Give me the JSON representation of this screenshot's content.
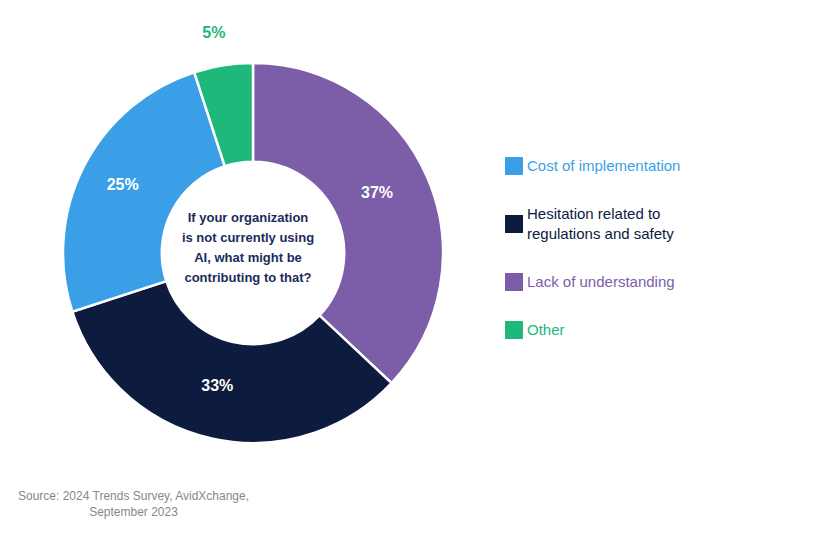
{
  "chart_data": {
    "type": "pie",
    "categories": [
      "Lack of understanding",
      "Hesitation related to\nregulations and safety",
      "Cost of implementation",
      "Other"
    ],
    "values": [
      37,
      33,
      25,
      5
    ],
    "value_labels": [
      "37%",
      "33%",
      "25%",
      "5%"
    ],
    "colors": [
      "#7B5EA7",
      "#0D1B3E",
      "#3B9FE8",
      "#1DB87A"
    ],
    "annotations": [
      "If your organization\nis not currently using\nAI, what might be\ncontributing to that?",
      "Source: 2024 Trends Survey, AvidXchange,\nSeptember 2023"
    ],
    "legend": "right",
    "data_labels": true
  }
}
